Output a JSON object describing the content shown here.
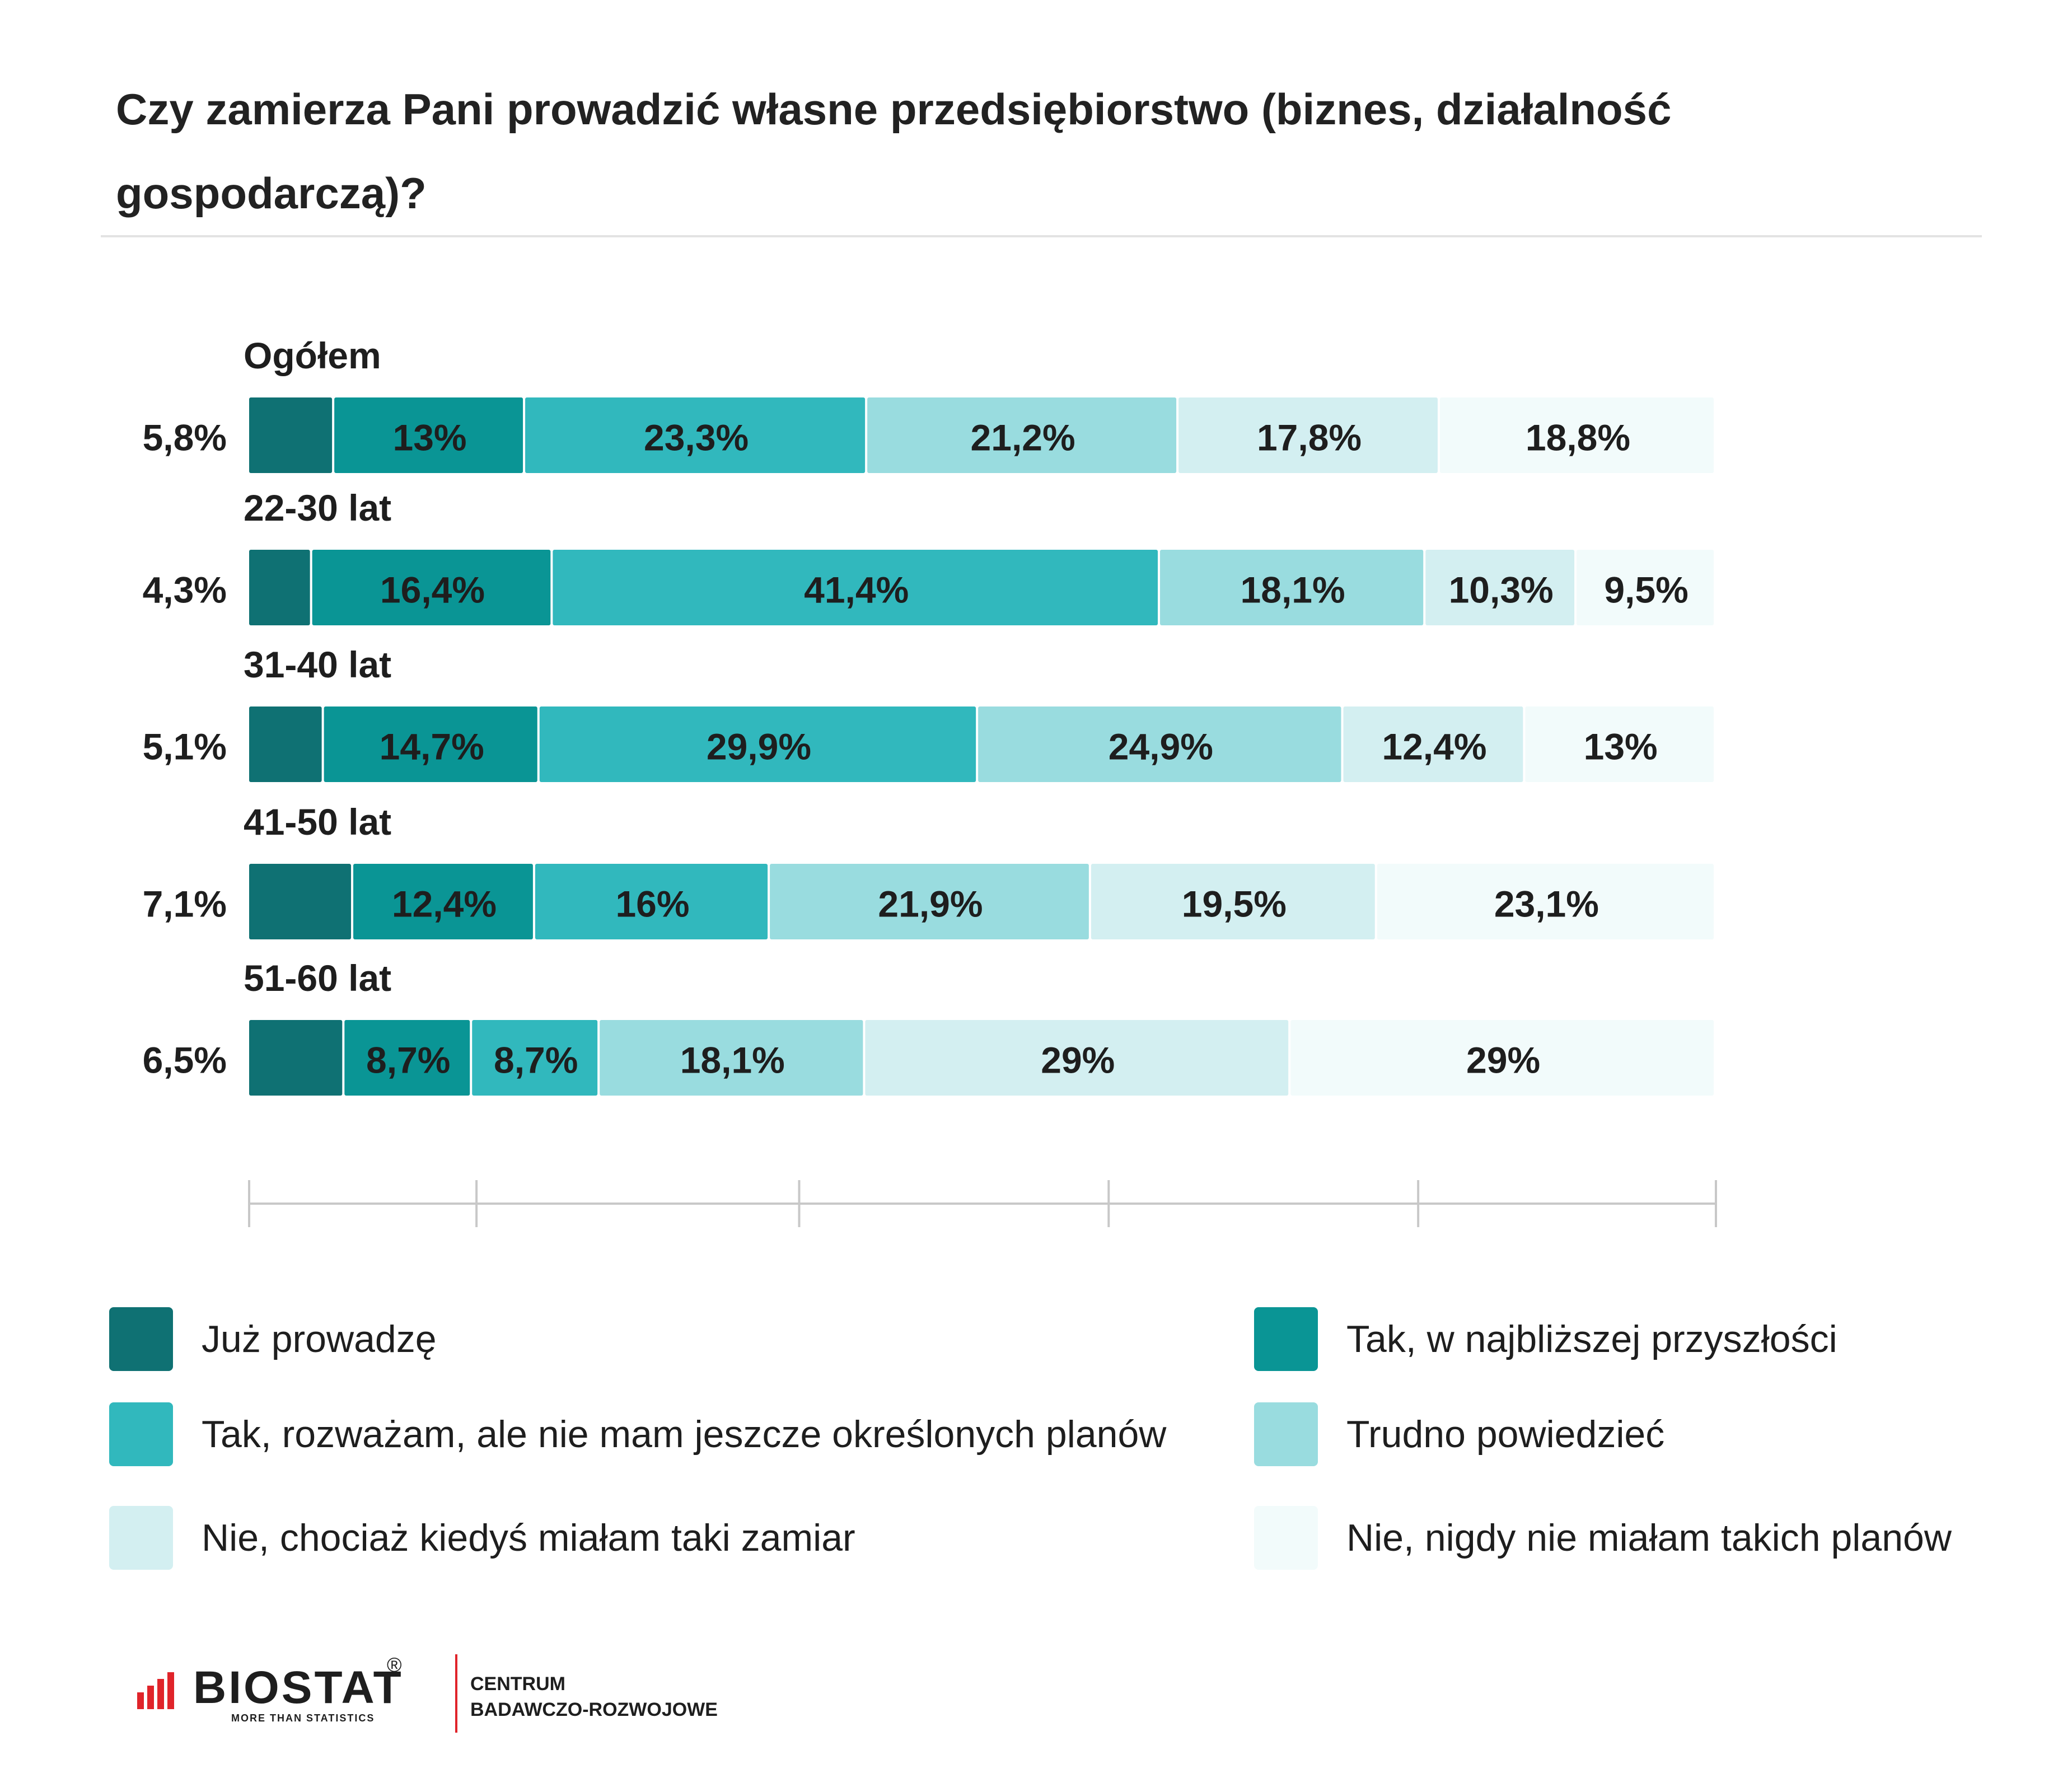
{
  "chart_data": {
    "type": "stacked-bar-horizontal",
    "title": "Czy zamierza Pani prowadzić własne przedsiębiorstwo (biznes, działalność gospodarczą)?",
    "categories": [
      "Ogółem",
      "22-30 lat",
      "31-40 lat",
      "41-50 lat",
      "51-60 lat"
    ],
    "series": [
      {
        "name": "Już prowadzę",
        "color": "#0f7173",
        "values": [
          5.8,
          4.3,
          5.1,
          7.1,
          6.5
        ],
        "labels": [
          "5,8%",
          "4,3%",
          "5,1%",
          "7,1%",
          "6,5%"
        ]
      },
      {
        "name": "Tak, w najbliższej przyszłości",
        "color": "#0a9595",
        "values": [
          13,
          16.4,
          14.7,
          12.4,
          8.7
        ],
        "labels": [
          "13%",
          "16,4%",
          "14,7%",
          "12,4%",
          "8,7%"
        ]
      },
      {
        "name": "Tak, rozważam, ale nie mam jeszcze określonych planów",
        "color": "#31b8bd",
        "values": [
          23.3,
          41.4,
          29.9,
          16,
          8.7
        ],
        "labels": [
          "23,3%",
          "41,4%",
          "29,9%",
          "16%",
          "8,7%"
        ]
      },
      {
        "name": "Trudno powiedzieć",
        "color": "#99dcdf",
        "values": [
          21.2,
          18.1,
          24.9,
          21.9,
          18.1
        ],
        "labels": [
          "21,2%",
          "18,1%",
          "24,9%",
          "21,9%",
          "18,1%"
        ]
      },
      {
        "name": "Nie, chociaż kiedyś miałam taki zamiar",
        "color": "#d3eff1",
        "values": [
          17.8,
          10.3,
          12.4,
          19.5,
          29
        ],
        "labels": [
          "17,8%",
          "10,3%",
          "12,4%",
          "19,5%",
          "29%"
        ]
      },
      {
        "name": "Nie, nigdy nie miałam takich planów",
        "color": "#f2fbfb",
        "values": [
          18.8,
          9.5,
          13,
          23.1,
          29
        ],
        "labels": [
          "18,8%",
          "9,5%",
          "13%",
          "23,1%",
          "29%"
        ]
      }
    ],
    "legend": "bottom",
    "grid": false
  },
  "logo": {
    "name": "BIOSTAT",
    "registered": "®",
    "tagline": "MORE THAN STATISTICS",
    "subtitle_line1": "CENTRUM",
    "subtitle_line2": "BADAWCZO-ROZWOJOWE",
    "accent_color": "#e0242a"
  }
}
